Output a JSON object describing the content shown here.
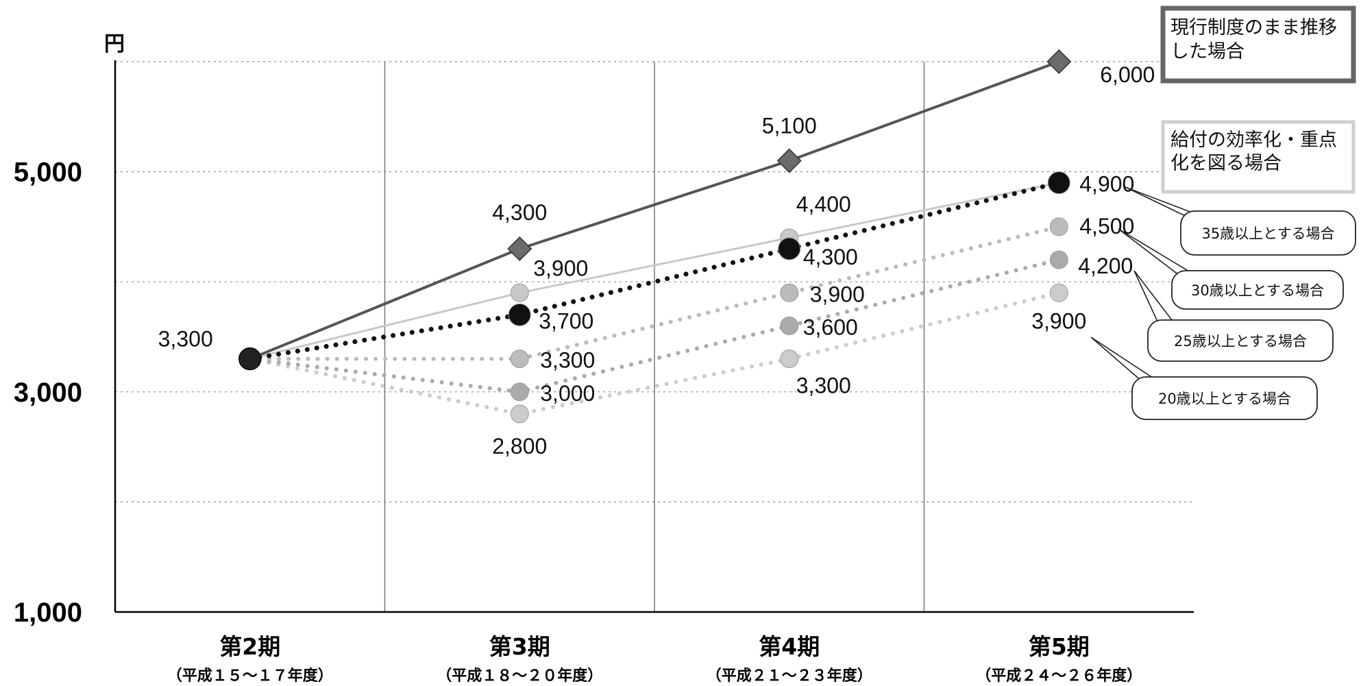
{
  "chart_data": {
    "type": "line",
    "unit_label": "円",
    "ylim": [
      1000,
      6000
    ],
    "yticks": [
      1000,
      3000,
      5000
    ],
    "yticks_labels": [
      "1,000",
      "3,000",
      "5,000"
    ],
    "grid": true,
    "categories": [
      {
        "label": "第2期",
        "sub": "（平成１５～１７年度）"
      },
      {
        "label": "第3期",
        "sub": "（平成１８～２０年度）"
      },
      {
        "label": "第4期",
        "sub": "（平成２１～２３年度）"
      },
      {
        "label": "第5期",
        "sub": "（平成２４～２６年度）"
      }
    ],
    "series": [
      {
        "name": "現行制度のまま推移した場合",
        "values": [
          3300,
          4300,
          5100,
          6000
        ],
        "labels": [
          "3,300",
          "4,300",
          "5,100",
          "6,000"
        ],
        "color": "#555555",
        "style": "solid",
        "marker": "diamond"
      },
      {
        "name": "給付の効率化・重点化を図る場合",
        "values": [
          3300,
          3900,
          4400,
          4900
        ],
        "labels": [
          "",
          "3,900",
          "4,400",
          ""
        ],
        "color": "#c8c8c8",
        "style": "solid",
        "marker": "circle"
      },
      {
        "name": "35歳以上とする場合",
        "values": [
          3300,
          3700,
          4300,
          4900
        ],
        "labels": [
          "",
          "3,700",
          "4,300",
          "4,900"
        ],
        "color": "#111111",
        "style": "dotted",
        "marker": "circle"
      },
      {
        "name": "30歳以上とする場合",
        "values": [
          3300,
          3300,
          3900,
          4500
        ],
        "labels": [
          "",
          "3,300",
          "3,900",
          "4,500"
        ],
        "color": "#bbbbbb",
        "style": "dotted",
        "marker": "circle"
      },
      {
        "name": "25歳以上とする場合",
        "values": [
          3300,
          3000,
          3600,
          4200
        ],
        "labels": [
          "",
          "3,000",
          "3,600",
          "4,200"
        ],
        "color": "#aaaaaa",
        "style": "dotted",
        "marker": "circle"
      },
      {
        "name": "20歳以上とする場合",
        "values": [
          3300,
          2800,
          3300,
          3900
        ],
        "labels": [
          "",
          "2,800",
          "3,300",
          "3,900"
        ],
        "color": "#cccccc",
        "style": "dotted",
        "marker": "circle"
      }
    ],
    "legend": {
      "current": "現行制度のまま推移した場合",
      "efficiency": "給付の効率化・重点化を図る場合"
    },
    "callouts": [
      "35歳以上とする場合",
      "30歳以上とする場合",
      "25歳以上とする場合",
      "20歳以上とする場合"
    ]
  }
}
